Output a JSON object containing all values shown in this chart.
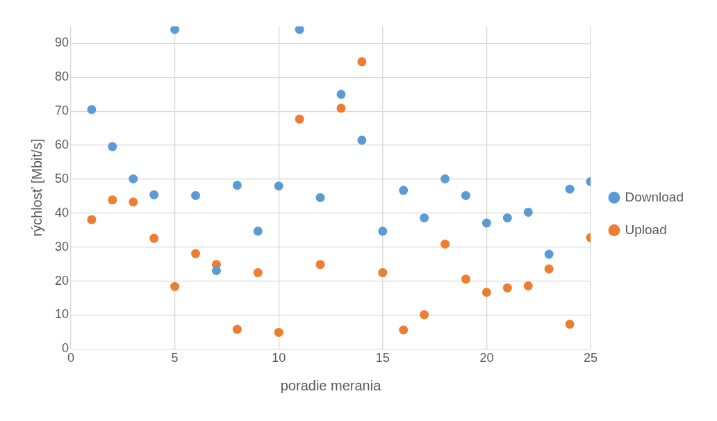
{
  "chart_data": {
    "type": "scatter",
    "xlabel": "poradie merania",
    "ylabel": "rýchlosť [Mbit/s]",
    "x": [
      1,
      2,
      3,
      4,
      5,
      6,
      7,
      8,
      9,
      10,
      11,
      12,
      13,
      14,
      15,
      16,
      17,
      18,
      19,
      20,
      21,
      22,
      23,
      24,
      25
    ],
    "series": [
      {
        "name": "Download",
        "color": "#5b9bd5",
        "values": [
          70.5,
          59.6,
          50.1,
          45.4,
          94.1,
          45.2,
          23.1,
          48.2,
          34.7,
          48.0,
          94.1,
          44.6,
          75.0,
          61.5,
          34.7,
          46.7,
          38.6,
          50.1,
          45.2,
          37.1,
          38.6,
          40.3,
          27.9,
          47.1,
          49.3
        ]
      },
      {
        "name": "Upload",
        "color": "#ed7d31",
        "values": [
          38.1,
          43.9,
          43.3,
          32.6,
          18.4,
          28.1,
          24.9,
          5.8,
          22.5,
          4.9,
          67.7,
          24.9,
          70.9,
          84.6,
          22.5,
          5.6,
          10.1,
          30.9,
          20.6,
          16.7,
          18.0,
          18.6,
          23.6,
          7.3,
          32.8
        ]
      }
    ],
    "xlim": [
      0,
      25
    ],
    "xticks": [
      0,
      5,
      10,
      15,
      20,
      25
    ],
    "ylim": [
      0,
      95
    ],
    "yticks": [
      0,
      10,
      20,
      30,
      40,
      50,
      60,
      70,
      80,
      90
    ],
    "grid": true,
    "legend": "right",
    "marker": "circle"
  }
}
